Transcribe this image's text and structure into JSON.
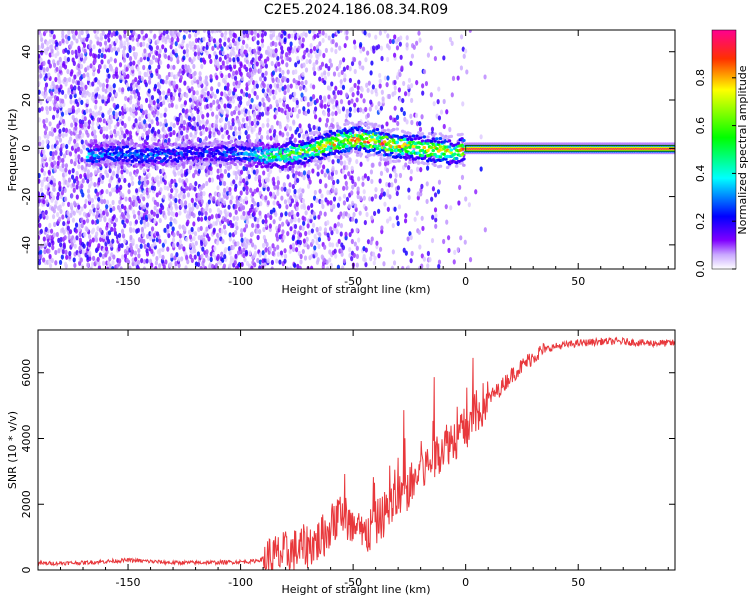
{
  "figure": {
    "title": "C2E5.2024.186.08.34.R09"
  },
  "chart_data": [
    {
      "type": "heatmap",
      "xlabel": "Height of straight line (km)",
      "ylabel": "Frequency (Hz)",
      "xlim": [
        -190,
        93
      ],
      "ylim": [
        -50,
        49
      ],
      "xticks": [
        -150,
        -100,
        -50,
        0,
        50
      ],
      "yticks": [
        -40,
        -20,
        0,
        20,
        40
      ],
      "grid": false,
      "colorbar": {
        "label": "Normalized spectral amplitude",
        "range": [
          0,
          1
        ],
        "ticks": [
          0.0,
          0.2,
          0.4,
          0.6,
          0.8
        ],
        "colormap": [
          "#ffffff",
          "#8000ff",
          "#0000ff",
          "#00ffff",
          "#00ff00",
          "#ffff00",
          "#ff0000"
        ]
      },
      "ridge": {
        "note_free": true,
        "x": [
          -168,
          -155,
          -140,
          -120,
          -100,
          -90,
          -80,
          -70,
          -60,
          -50,
          -40,
          -30,
          -20,
          -10,
          -5,
          0,
          10,
          20,
          40,
          60,
          93
        ],
        "y": [
          -3,
          -2,
          -3,
          -2,
          -2,
          -3,
          -3,
          -1,
          2,
          4,
          3,
          1,
          0,
          -1,
          -2,
          0,
          0,
          0,
          0,
          0,
          0
        ],
        "amplitude": [
          0.35,
          0.3,
          0.35,
          0.25,
          0.3,
          0.45,
          0.6,
          0.7,
          0.75,
          0.85,
          0.9,
          0.8,
          0.7,
          0.85,
          0.6,
          0.95,
          0.95,
          0.95,
          0.95,
          0.95,
          0.95
        ]
      }
    },
    {
      "type": "line",
      "xlabel": "Height of straight line (km)",
      "ylabel": "SNR (10 * v/v)",
      "xlim": [
        -190,
        93
      ],
      "ylim": [
        0,
        7300
      ],
      "xticks": [
        -150,
        -100,
        -50,
        0,
        50
      ],
      "yticks": [
        0,
        2000,
        4000,
        6000
      ],
      "grid": false,
      "series": [
        {
          "color": "#e8383c",
          "x": [
            -190,
            -170,
            -150,
            -130,
            -110,
            -95,
            -85,
            -75,
            -65,
            -60,
            -55,
            -50,
            -45,
            -40,
            -35,
            -30,
            -25,
            -20,
            -15,
            -10,
            -5,
            0,
            5,
            10,
            15,
            20,
            25,
            30,
            35,
            40,
            50,
            60,
            70,
            80,
            93
          ],
          "y": [
            200,
            220,
            300,
            220,
            230,
            260,
            400,
            600,
            900,
            1300,
            1800,
            1200,
            1000,
            1400,
            1800,
            2200,
            2500,
            3000,
            3300,
            3800,
            4000,
            4300,
            4800,
            5200,
            5500,
            5900,
            6200,
            6500,
            6700,
            6800,
            6900,
            6950,
            6950,
            6900,
            6900
          ]
        }
      ]
    }
  ]
}
